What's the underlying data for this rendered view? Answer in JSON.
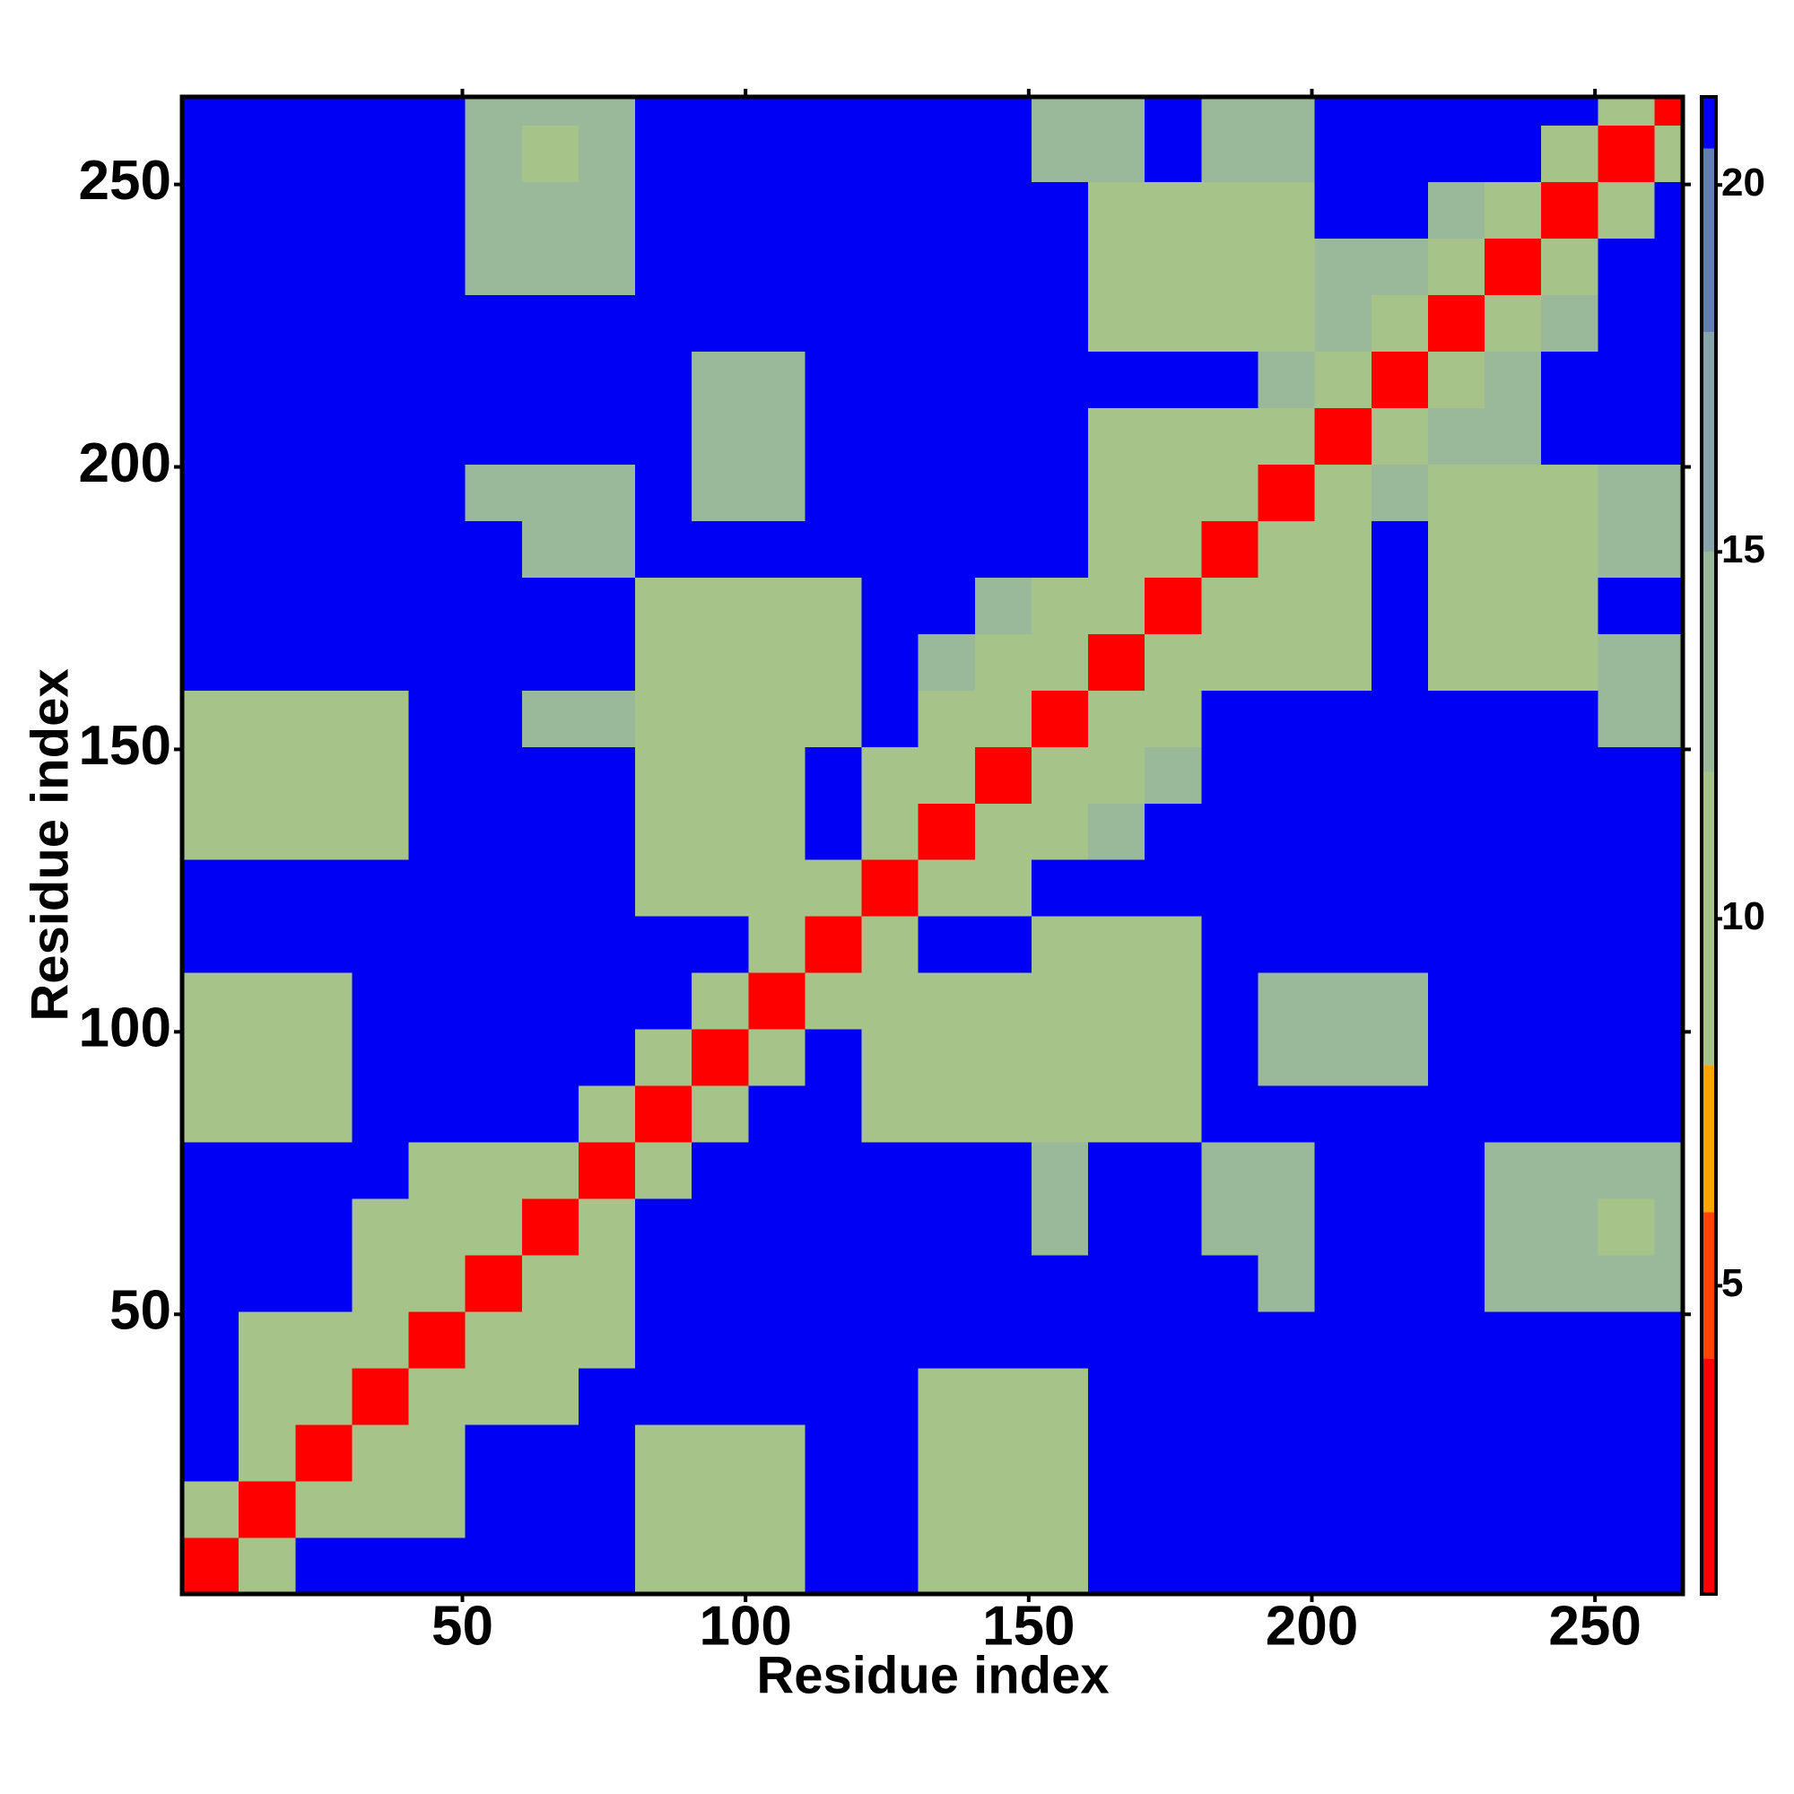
{
  "chart_data": {
    "type": "heatmap",
    "x_label": "Residue index",
    "y_label": "Residue index",
    "xlim": [
      0.5,
      265.5
    ],
    "ylim": [
      0.5,
      265.5
    ],
    "xticks": [
      50,
      100,
      150,
      200,
      250
    ],
    "yticks": [
      50,
      100,
      150,
      200,
      250
    ],
    "x": [
      5.5,
      15.5,
      25.5,
      35.5,
      45.5,
      55.5,
      65.5,
      75.5,
      85.5,
      95.5,
      105.5,
      115.5,
      125.5,
      135.5,
      145.5,
      155.5,
      165.5,
      175.5,
      185.5,
      195.5,
      205.5,
      215.5,
      225.5,
      235.5,
      245.5,
      255.5,
      265.5
    ],
    "y": [
      5.5,
      15.5,
      25.5,
      35.5,
      45.5,
      55.5,
      65.5,
      75.5,
      85.5,
      95.5,
      105.5,
      115.5,
      125.5,
      135.5,
      145.5,
      155.5,
      165.5,
      175.5,
      185.5,
      195.5,
      205.5,
      215.5,
      225.5,
      235.5,
      245.5,
      255.5,
      265.5
    ],
    "z": [
      [
        3,
        9,
        21,
        21,
        21,
        21,
        21,
        21,
        12,
        12,
        12,
        21,
        21,
        12,
        12,
        12,
        21,
        21,
        21,
        21,
        21,
        21,
        21,
        21,
        21,
        21,
        21
      ],
      [
        9,
        3,
        9,
        12,
        12,
        21,
        21,
        21,
        12,
        12,
        12,
        21,
        21,
        12,
        12,
        12,
        21,
        21,
        21,
        21,
        21,
        21,
        21,
        21,
        21,
        21,
        21
      ],
      [
        21,
        9,
        3,
        9,
        12,
        21,
        21,
        21,
        12,
        12,
        12,
        21,
        21,
        12,
        12,
        12,
        21,
        21,
        21,
        21,
        21,
        21,
        21,
        21,
        21,
        21,
        21
      ],
      [
        21,
        12,
        9,
        3,
        9,
        12,
        12,
        21,
        21,
        21,
        21,
        21,
        21,
        12,
        12,
        12,
        21,
        21,
        21,
        21,
        21,
        21,
        21,
        21,
        21,
        21,
        21
      ],
      [
        21,
        12,
        12,
        9,
        3,
        9,
        12,
        12,
        21,
        21,
        21,
        21,
        21,
        21,
        21,
        21,
        21,
        21,
        21,
        21,
        21,
        21,
        21,
        21,
        21,
        21,
        21
      ],
      [
        21,
        21,
        21,
        12,
        9,
        3,
        9,
        12,
        21,
        21,
        21,
        21,
        21,
        21,
        21,
        21,
        21,
        21,
        21,
        14,
        21,
        21,
        21,
        13,
        13,
        13,
        13
      ],
      [
        21,
        21,
        21,
        12,
        12,
        9,
        3,
        9,
        21,
        21,
        21,
        21,
        21,
        21,
        21,
        13,
        21,
        21,
        14,
        14,
        21,
        21,
        21,
        13,
        13,
        11,
        13
      ],
      [
        21,
        21,
        21,
        21,
        12,
        12,
        9,
        3,
        9,
        21,
        21,
        21,
        21,
        21,
        21,
        13,
        21,
        21,
        14,
        14,
        21,
        21,
        21,
        13,
        13,
        13,
        13
      ],
      [
        12,
        12,
        12,
        21,
        21,
        21,
        21,
        9,
        3,
        9,
        21,
        21,
        12,
        12,
        12,
        11,
        11,
        12,
        21,
        21,
        21,
        21,
        21,
        21,
        21,
        21,
        21
      ],
      [
        12,
        12,
        12,
        21,
        21,
        21,
        21,
        21,
        9,
        3,
        9,
        21,
        12,
        12,
        12,
        12,
        11,
        11,
        21,
        15,
        15,
        15,
        21,
        21,
        21,
        21,
        21
      ],
      [
        12,
        12,
        12,
        21,
        21,
        21,
        21,
        21,
        21,
        9,
        3,
        9,
        12,
        12,
        12,
        12,
        12,
        12,
        21,
        15,
        15,
        15,
        21,
        21,
        21,
        21,
        21
      ],
      [
        21,
        21,
        21,
        21,
        21,
        21,
        21,
        21,
        21,
        21,
        9,
        3,
        9,
        21,
        21,
        12,
        12,
        12,
        21,
        21,
        21,
        21,
        21,
        21,
        21,
        21,
        21
      ],
      [
        21,
        21,
        21,
        21,
        21,
        21,
        21,
        21,
        12,
        12,
        12,
        9,
        3,
        9,
        12,
        21,
        21,
        21,
        21,
        21,
        21,
        21,
        21,
        21,
        21,
        21,
        21
      ],
      [
        12,
        12,
        12,
        12,
        21,
        21,
        21,
        21,
        12,
        12,
        12,
        21,
        9,
        3,
        9,
        12,
        14,
        21,
        21,
        21,
        21,
        21,
        21,
        21,
        21,
        21,
        21
      ],
      [
        12,
        12,
        12,
        12,
        21,
        21,
        21,
        21,
        12,
        12,
        12,
        21,
        12,
        9,
        3,
        9,
        12,
        14,
        21,
        21,
        21,
        21,
        21,
        21,
        21,
        21,
        21
      ],
      [
        12,
        12,
        12,
        12,
        21,
        21,
        13,
        13,
        11,
        12,
        12,
        12,
        21,
        12,
        9,
        3,
        9,
        12,
        21,
        21,
        21,
        21,
        21,
        21,
        21,
        15,
        15
      ],
      [
        21,
        21,
        21,
        21,
        21,
        21,
        21,
        21,
        11,
        11,
        12,
        12,
        21,
        14,
        12,
        9,
        3,
        9,
        12,
        12,
        12,
        21,
        12,
        12,
        12,
        15,
        15
      ],
      [
        21,
        21,
        21,
        21,
        21,
        21,
        21,
        21,
        12,
        11,
        12,
        12,
        21,
        21,
        14,
        12,
        9,
        3,
        9,
        12,
        12,
        21,
        12,
        12,
        12,
        21,
        21
      ],
      [
        21,
        21,
        21,
        21,
        21,
        21,
        14,
        14,
        21,
        21,
        21,
        21,
        21,
        21,
        21,
        21,
        12,
        9,
        3,
        9,
        12,
        21,
        12,
        12,
        12,
        13,
        13
      ],
      [
        21,
        21,
        21,
        21,
        21,
        14,
        14,
        14,
        21,
        15,
        15,
        21,
        21,
        21,
        21,
        21,
        12,
        12,
        9,
        3,
        9,
        13,
        12,
        12,
        12,
        13,
        13
      ],
      [
        21,
        21,
        21,
        21,
        21,
        21,
        21,
        21,
        21,
        15,
        15,
        21,
        21,
        21,
        21,
        21,
        12,
        12,
        12,
        9,
        3,
        9,
        13,
        13,
        21,
        21,
        21
      ],
      [
        21,
        21,
        21,
        21,
        21,
        21,
        21,
        21,
        21,
        15,
        15,
        21,
        21,
        21,
        21,
        21,
        21,
        21,
        21,
        13,
        9,
        3,
        9,
        13,
        21,
        21,
        21
      ],
      [
        21,
        21,
        21,
        21,
        21,
        21,
        21,
        21,
        21,
        21,
        21,
        21,
        21,
        21,
        21,
        21,
        12,
        12,
        12,
        12,
        13,
        9,
        3,
        9,
        13,
        21,
        21
      ],
      [
        21,
        21,
        21,
        21,
        21,
        13,
        13,
        13,
        21,
        21,
        21,
        21,
        21,
        21,
        21,
        21,
        12,
        12,
        12,
        12,
        13,
        13,
        9,
        3,
        9,
        21,
        21
      ],
      [
        21,
        21,
        21,
        21,
        21,
        13,
        13,
        13,
        21,
        21,
        21,
        21,
        21,
        21,
        21,
        21,
        12,
        12,
        12,
        12,
        21,
        21,
        13,
        9,
        3,
        9,
        21
      ],
      [
        21,
        21,
        21,
        21,
        21,
        13,
        11,
        13,
        21,
        21,
        21,
        21,
        21,
        21,
        21,
        15,
        15,
        21,
        13,
        13,
        21,
        21,
        21,
        21,
        9,
        3,
        9
      ],
      [
        21,
        21,
        21,
        21,
        21,
        13,
        13,
        13,
        21,
        21,
        21,
        21,
        21,
        21,
        21,
        15,
        15,
        21,
        13,
        13,
        21,
        21,
        21,
        21,
        21,
        9,
        3
      ]
    ],
    "colorbar": {
      "lim": [
        0.8,
        21.2
      ],
      "ticks": [
        5,
        10,
        15,
        20
      ]
    },
    "colormap": [
      {
        "max": 4,
        "color": "#ff0000"
      },
      {
        "max": 6,
        "color": "#ff4500"
      },
      {
        "max": 8,
        "color": "#ffa500"
      },
      {
        "max": 12,
        "color": "#a6c48a"
      },
      {
        "max": 15,
        "color": "#9ab89a"
      },
      {
        "max": 18,
        "color": "#88a4ab"
      },
      {
        "max": 20.5,
        "color": "#5f7fb5"
      },
      {
        "max": 21.2,
        "color": "#0000f2"
      }
    ]
  }
}
